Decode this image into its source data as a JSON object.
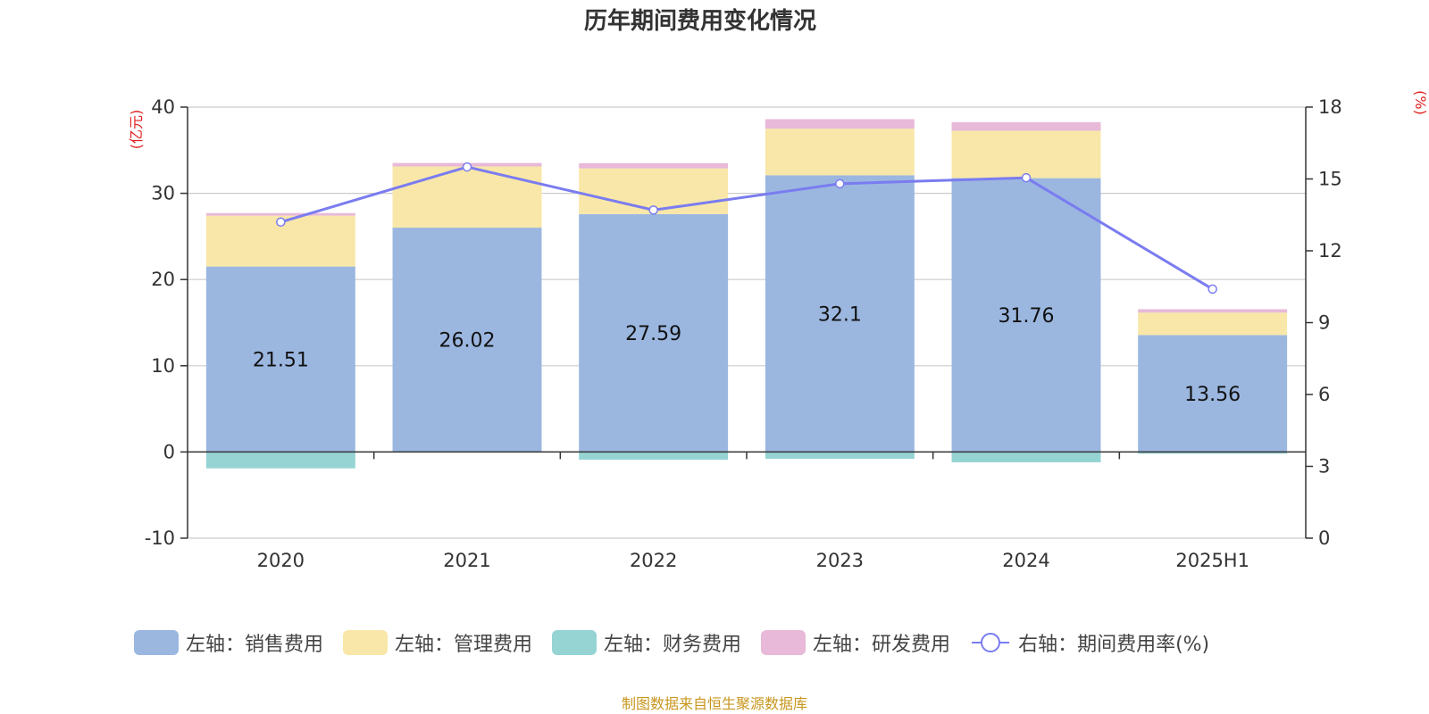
{
  "chart_data": {
    "type": "bar",
    "title": "历年期间费用变化情况",
    "categories": [
      "2020",
      "2021",
      "2022",
      "2023",
      "2024",
      "2025H1"
    ],
    "left_axis": {
      "unit": "(亿元)",
      "ylim": [
        -10,
        40
      ],
      "ticks": [
        -10,
        0,
        10,
        20,
        30,
        40
      ]
    },
    "right_axis": {
      "unit": "(%)",
      "ylim": [
        0,
        18
      ],
      "ticks": [
        0,
        3,
        6,
        9,
        12,
        15,
        18
      ]
    },
    "series": [
      {
        "name": "左轴：销售费用",
        "axis": "left",
        "type": "bar",
        "color": "#9bb7e0",
        "values": [
          21.51,
          26.02,
          27.59,
          32.1,
          31.76,
          13.56
        ],
        "show_labels": true
      },
      {
        "name": "左轴：管理费用",
        "axis": "left",
        "type": "bar",
        "color": "#f8e7a8",
        "values": [
          5.9,
          7.1,
          5.3,
          5.4,
          5.5,
          2.6
        ]
      },
      {
        "name": "左轴：财务费用",
        "axis": "left",
        "type": "bar",
        "color": "#96d4d4",
        "values": [
          -1.9,
          0.0,
          -0.9,
          -0.8,
          -1.2,
          -0.2
        ]
      },
      {
        "name": "左轴：研发费用",
        "axis": "left",
        "type": "bar",
        "color": "#e8b9d8",
        "values": [
          0.3,
          0.4,
          0.6,
          1.1,
          1.0,
          0.4
        ]
      },
      {
        "name": "右轴：期间费用率(%)",
        "axis": "right",
        "type": "line",
        "color": "#7a7cf0",
        "values": [
          13.2,
          15.5,
          13.7,
          14.8,
          15.05,
          10.4
        ]
      }
    ],
    "unit_color": "#e02020",
    "legend_position": "bottom"
  },
  "source": {
    "text": "制图数据来自恒生聚源数据库",
    "color": "#c8961e"
  }
}
